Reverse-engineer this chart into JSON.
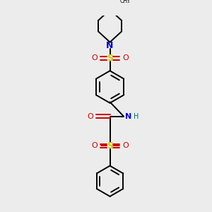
{
  "bg_color": "#ececec",
  "bond_color": "#000000",
  "N_color": "#0000cc",
  "O_color": "#cc0000",
  "S_color": "#cccc00",
  "line_width": 1.4,
  "figsize": [
    3.0,
    3.0
  ],
  "dpi": 100,
  "xlim": [
    0,
    10
  ],
  "ylim": [
    0,
    10
  ]
}
